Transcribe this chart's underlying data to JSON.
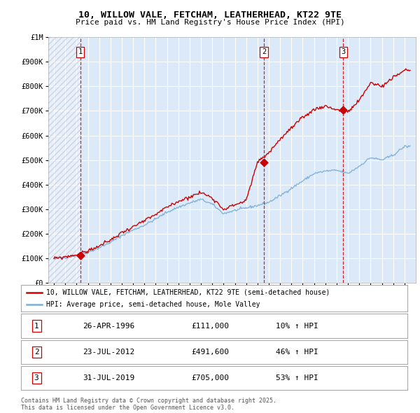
{
  "title": "10, WILLOW VALE, FETCHAM, LEATHERHEAD, KT22 9TE",
  "subtitle": "Price paid vs. HM Land Registry's House Price Index (HPI)",
  "ylim": [
    0,
    1000000
  ],
  "yticks": [
    0,
    100000,
    200000,
    300000,
    400000,
    500000,
    600000,
    700000,
    800000,
    900000,
    1000000
  ],
  "ytick_labels": [
    "£0",
    "£100K",
    "£200K",
    "£300K",
    "£400K",
    "£500K",
    "£600K",
    "£700K",
    "£800K",
    "£900K",
    "£1M"
  ],
  "background_color": "#ffffff",
  "plot_bg_color": "#dce9f8",
  "grid_color": "#ffffff",
  "sale_color": "#cc0000",
  "hpi_color": "#7aaed6",
  "sale_dates": [
    1996.32,
    2012.56,
    2019.58
  ],
  "sale_prices": [
    111000,
    491600,
    705000
  ],
  "sale_labels": [
    "1",
    "2",
    "3"
  ],
  "legend_sale": "10, WILLOW VALE, FETCHAM, LEATHERHEAD, KT22 9TE (semi-detached house)",
  "legend_hpi": "HPI: Average price, semi-detached house, Mole Valley",
  "table_data": [
    [
      "1",
      "26-APR-1996",
      "£111,000",
      "10% ↑ HPI"
    ],
    [
      "2",
      "23-JUL-2012",
      "£491,600",
      "46% ↑ HPI"
    ],
    [
      "3",
      "31-JUL-2019",
      "£705,000",
      "53% ↑ HPI"
    ]
  ],
  "footnote": "Contains HM Land Registry data © Crown copyright and database right 2025.\nThis data is licensed under the Open Government Licence v3.0.",
  "xlim": [
    1993.5,
    2026.0
  ],
  "xtick_years": [
    1994,
    1995,
    1996,
    1997,
    1998,
    1999,
    2000,
    2001,
    2002,
    2003,
    2004,
    2005,
    2006,
    2007,
    2008,
    2009,
    2010,
    2011,
    2012,
    2013,
    2014,
    2015,
    2016,
    2017,
    2018,
    2019,
    2020,
    2021,
    2022,
    2023,
    2024,
    2025
  ],
  "hpi_anchors_x": [
    1994,
    1995,
    1996,
    1997,
    1998,
    1999,
    2000,
    2001,
    2002,
    2003,
    2004,
    2005,
    2006,
    2007,
    2008,
    2009,
    2010,
    2011,
    2012,
    2013,
    2014,
    2015,
    2016,
    2017,
    2018,
    2019,
    2020,
    2021,
    2022,
    2023,
    2024,
    2025
  ],
  "hpi_anchors_y": [
    97000,
    103000,
    112000,
    124000,
    143000,
    165000,
    193000,
    215000,
    235000,
    260000,
    288000,
    308000,
    325000,
    340000,
    320000,
    282000,
    295000,
    305000,
    315000,
    328000,
    355000,
    385000,
    415000,
    445000,
    455000,
    458000,
    445000,
    475000,
    510000,
    500000,
    520000,
    555000
  ],
  "sale_anchors_x": [
    1994,
    1995,
    1996,
    1997,
    1998,
    1999,
    2000,
    2001,
    2002,
    2003,
    2004,
    2005,
    2006,
    2007,
    2008,
    2009,
    2010,
    2011,
    2012,
    2013,
    2014,
    2015,
    2016,
    2017,
    2018,
    2019,
    2020,
    2021,
    2022,
    2023,
    2024,
    2025
  ],
  "sale_anchors_y": [
    99000,
    106000,
    115000,
    130000,
    150000,
    174000,
    205000,
    228000,
    252000,
    278000,
    308000,
    332000,
    350000,
    368000,
    347000,
    300000,
    318000,
    335000,
    491600,
    530000,
    585000,
    630000,
    672000,
    706000,
    720000,
    705000,
    695000,
    742000,
    815000,
    800000,
    835000,
    865000
  ]
}
